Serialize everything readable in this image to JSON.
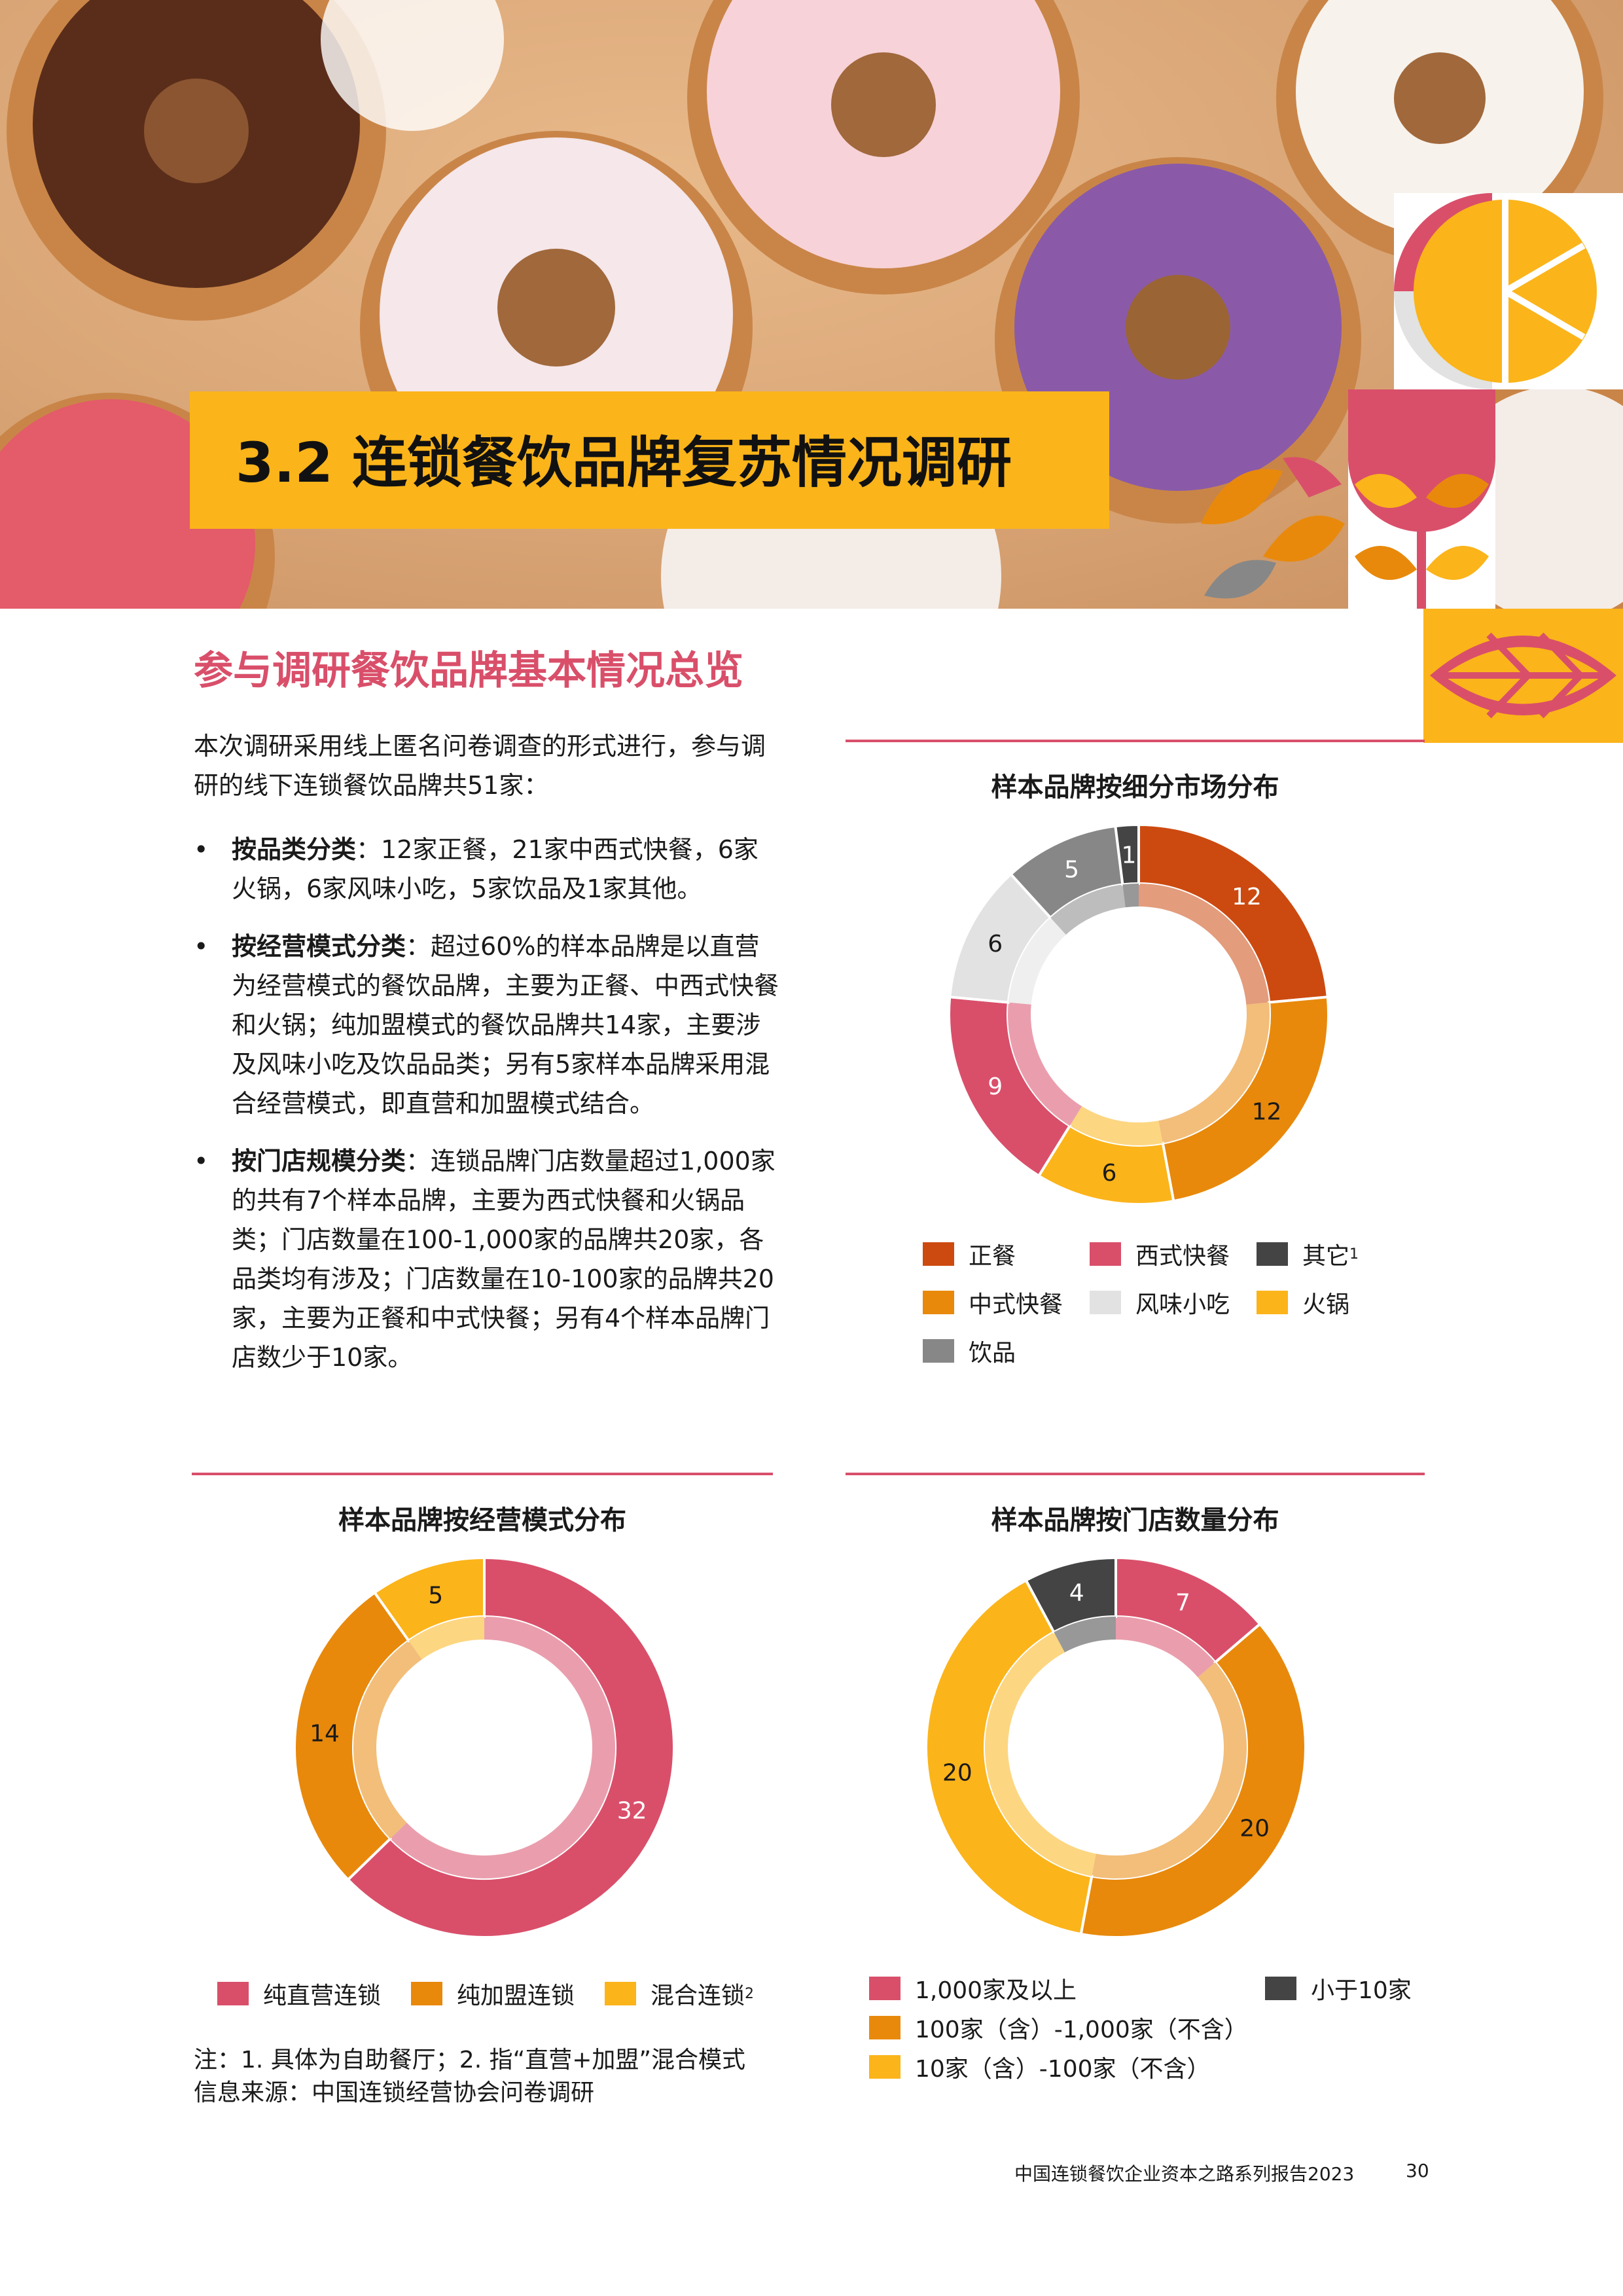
{
  "header": {
    "title": "3.2 连锁餐饮品牌复苏情况调研",
    "subtitle": "参与调研餐饮品牌基本情况总览"
  },
  "intro": "本次调研采用线上匿名问卷调查的形式进行，参与调研的线下连锁餐饮品牌共51家：",
  "bullets": [
    {
      "label": "按品类分类",
      "text": "：12家正餐，21家中西式快餐，6家火锅，6家风味小吃，5家饮品及1家其他。"
    },
    {
      "label": "按经营模式分类",
      "text": "：超过60%的样本品牌是以直营为经营模式的餐饮品牌，主要为正餐、中西式快餐和火锅；纯加盟模式的餐饮品牌共14家，主要涉及风味小吃及饮品品类；另有5家样本品牌采用混合经营模式，即直营和加盟模式结合。"
    },
    {
      "label": "按门店规模分类",
      "text": "：连锁品牌门店数量超过1,000家的共有7个样本品牌，主要为西式快餐和火锅品类；门店数量在100-1,000家的品牌共20家，各品类均有涉及；门店数量在10-100家的品牌共20家，主要为正餐和中式快餐；另有4个样本品牌门店数少于10家。"
    }
  ],
  "colors": {
    "accent_pink": "#d94f6a",
    "accent_yellow": "#fbb41a",
    "orange_dark": "#cc4a10",
    "orange": "#e8890c",
    "yellow": "#fbb41a",
    "pink": "#d94f6a",
    "light_gray": "#e2e2e2",
    "mid_gray": "#878787",
    "dark_gray": "#444444"
  },
  "chart_data": [
    {
      "type": "donut",
      "title": "样本品牌按细分市场分布",
      "series": [
        {
          "name": "正餐",
          "value": 12,
          "color": "#cc4a10"
        },
        {
          "name": "中式快餐",
          "value": 12,
          "color": "#e8890c"
        },
        {
          "name": "火锅",
          "value": 6,
          "color": "#fbb41a"
        },
        {
          "name": "西式快餐",
          "value": 9,
          "color": "#d94f6a"
        },
        {
          "name": "风味小吃",
          "value": 6,
          "color": "#e2e2e2"
        },
        {
          "name": "饮品",
          "value": 5,
          "color": "#878787"
        },
        {
          "name": "其它",
          "value": 1,
          "color": "#444444",
          "sup": "1"
        }
      ],
      "legend_order": [
        "正餐",
        "西式快餐",
        "其它",
        "中式快餐",
        "风味小吃",
        "火锅",
        "饮品"
      ]
    },
    {
      "type": "donut",
      "title": "样本品牌按经营模式分布",
      "series": [
        {
          "name": "纯直营连锁",
          "value": 32,
          "color": "#d94f6a"
        },
        {
          "name": "纯加盟连锁",
          "value": 14,
          "color": "#e8890c"
        },
        {
          "name": "混合连锁",
          "value": 5,
          "color": "#fbb41a",
          "sup": "2"
        }
      ]
    },
    {
      "type": "donut",
      "title": "样本品牌按门店数量分布",
      "series": [
        {
          "name": "1,000家及以上",
          "value": 7,
          "color": "#d94f6a"
        },
        {
          "name": "100家（含）-1,000家（不含）",
          "value": 20,
          "color": "#e8890c"
        },
        {
          "name": "10家（含）-100家（不含）",
          "value": 20,
          "color": "#fbb41a"
        },
        {
          "name": "小于10家",
          "value": 4,
          "color": "#444444"
        }
      ]
    }
  ],
  "notes": {
    "note": "注：1. 具体为自助餐厅；2. 指“直营+加盟”混合模式",
    "source": "信息来源：中国连锁经营协会问卷调研"
  },
  "footer": {
    "report": "中国连锁餐饮企业资本之路系列报告2023",
    "page": "30"
  }
}
